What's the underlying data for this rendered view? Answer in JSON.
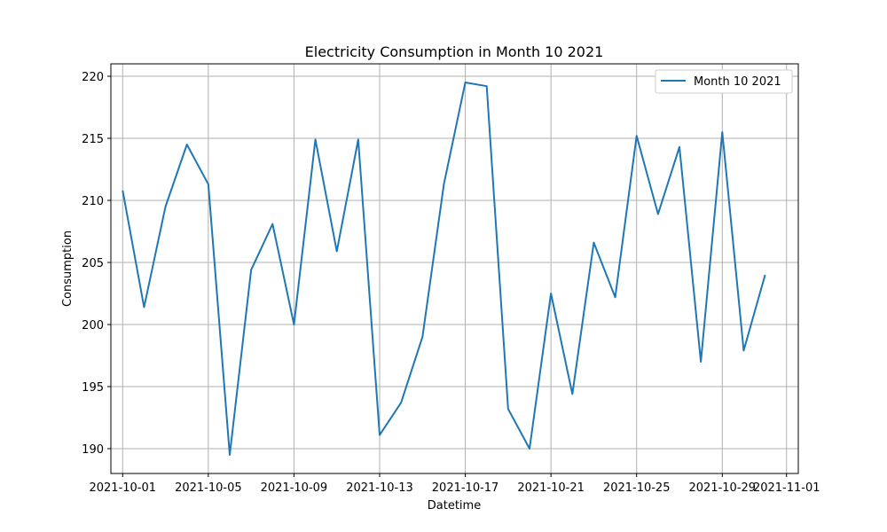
{
  "chart_data": {
    "type": "line",
    "title": "Electricity Consumption in Month 10 2021",
    "xlabel": "Datetime",
    "ylabel": "Consumption",
    "x_ticks": [
      "2021-10-01",
      "2021-10-05",
      "2021-10-09",
      "2021-10-13",
      "2021-10-17",
      "2021-10-21",
      "2021-10-25",
      "2021-10-29",
      "2021-11-01"
    ],
    "y_ticks": [
      190,
      195,
      200,
      205,
      210,
      215,
      220
    ],
    "xlim": [
      "2021-09-30",
      "2021-11-01"
    ],
    "ylim": [
      188,
      221
    ],
    "grid": true,
    "legend_position": "upper right",
    "colors": {
      "series": "#1f77b4"
    },
    "series": [
      {
        "name": "Month 10 2021",
        "x": [
          "2021-10-01",
          "2021-10-02",
          "2021-10-03",
          "2021-10-04",
          "2021-10-05",
          "2021-10-06",
          "2021-10-07",
          "2021-10-08",
          "2021-10-09",
          "2021-10-10",
          "2021-10-11",
          "2021-10-12",
          "2021-10-13",
          "2021-10-14",
          "2021-10-15",
          "2021-10-16",
          "2021-10-17",
          "2021-10-18",
          "2021-10-19",
          "2021-10-20",
          "2021-10-21",
          "2021-10-22",
          "2021-10-23",
          "2021-10-24",
          "2021-10-25",
          "2021-10-26",
          "2021-10-27",
          "2021-10-28",
          "2021-10-29",
          "2021-10-30",
          "2021-10-31"
        ],
        "y": [
          210.8,
          201.4,
          209.5,
          214.5,
          211.3,
          189.5,
          204.4,
          208.1,
          200.0,
          214.9,
          205.9,
          214.9,
          191.1,
          193.7,
          199.0,
          211.3,
          219.5,
          219.2,
          193.2,
          190.0,
          202.5,
          194.4,
          206.6,
          202.2,
          215.2,
          208.9,
          214.3,
          197.0,
          215.5,
          197.9,
          204.0
        ]
      }
    ]
  }
}
